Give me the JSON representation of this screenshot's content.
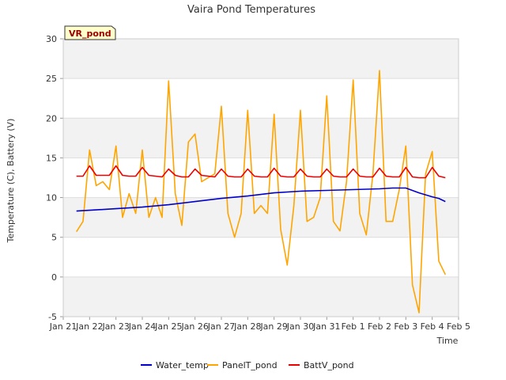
{
  "chart_data": {
    "type": "line",
    "title": "Vaira Pond Temperatures",
    "xlabel": "Time",
    "ylabel": "Temperature (C), Battery (V)",
    "badge": "VR_pond",
    "ylim": [
      -5,
      30
    ],
    "yticks": [
      -5,
      0,
      5,
      10,
      15,
      20,
      25,
      30
    ],
    "xticks": [
      "Jan 21",
      "Jan 22",
      "Jan 23",
      "Jan 24",
      "Jan 25",
      "Jan 26",
      "Jan 27",
      "Jan 28",
      "Jan 29",
      "Jan 30",
      "Jan 31",
      "Feb 1",
      "Feb 2",
      "Feb 3",
      "Feb 4",
      "Feb 5"
    ],
    "grid": "horizontal bands",
    "legend_position": "bottom",
    "colors": {
      "Water_temp": "#0000cc",
      "PanelT_pond": "#ffa500",
      "BattV_pond": "#ee0000"
    },
    "series": [
      {
        "name": "Water_temp",
        "x": [
          "Jan 21 12:00",
          "Jan 22 00:00",
          "Jan 23 00:00",
          "Jan 24 00:00",
          "Jan 25 00:00",
          "Jan 26 00:00",
          "Jan 27 00:00",
          "Jan 28 00:00",
          "Jan 29 00:00",
          "Jan 30 00:00",
          "Jan 31 00:00",
          "Feb 1 00:00",
          "Feb 2 00:00",
          "Feb 2 12:00",
          "Feb 3 00:00",
          "Feb 3 12:00",
          "Feb 4 00:00",
          "Feb 4 06:00",
          "Feb 4 12:00"
        ],
        "values": [
          8.3,
          8.4,
          8.6,
          8.8,
          9.1,
          9.5,
          9.9,
          10.2,
          10.6,
          10.8,
          10.9,
          11.0,
          11.1,
          11.2,
          11.2,
          10.6,
          10.1,
          9.9,
          9.5
        ]
      },
      {
        "name": "PanelT_pond",
        "x": [
          "Jan 21 12:00",
          "Jan 21 18:00",
          "Jan 22 00:00",
          "Jan 22 06:00",
          "Jan 22 12:00",
          "Jan 22 18:00",
          "Jan 23 00:00",
          "Jan 23 06:00",
          "Jan 23 12:00",
          "Jan 23 18:00",
          "Jan 24 00:00",
          "Jan 24 06:00",
          "Jan 24 12:00",
          "Jan 24 18:00",
          "Jan 25 00:00",
          "Jan 25 06:00",
          "Jan 25 12:00",
          "Jan 25 18:00",
          "Jan 26 00:00",
          "Jan 26 06:00",
          "Jan 26 12:00",
          "Jan 26 18:00",
          "Jan 27 00:00",
          "Jan 27 06:00",
          "Jan 27 12:00",
          "Jan 27 18:00",
          "Jan 28 00:00",
          "Jan 28 06:00",
          "Jan 28 12:00",
          "Jan 28 18:00",
          "Jan 29 00:00",
          "Jan 29 06:00",
          "Jan 29 12:00",
          "Jan 29 18:00",
          "Jan 30 00:00",
          "Jan 30 06:00",
          "Jan 30 12:00",
          "Jan 30 18:00",
          "Jan 31 00:00",
          "Jan 31 06:00",
          "Jan 31 12:00",
          "Jan 31 18:00",
          "Feb 1 00:00",
          "Feb 1 06:00",
          "Feb 1 12:00",
          "Feb 1 18:00",
          "Feb 2 00:00",
          "Feb 2 06:00",
          "Feb 2 12:00",
          "Feb 2 18:00",
          "Feb 3 00:00",
          "Feb 3 06:00",
          "Feb 3 12:00",
          "Feb 3 18:00",
          "Feb 4 00:00",
          "Feb 4 06:00",
          "Feb 4 12:00"
        ],
        "values": [
          5.7,
          7.0,
          16.0,
          11.5,
          12.0,
          11.0,
          16.5,
          7.5,
          10.5,
          8.0,
          16.0,
          7.5,
          10.0,
          7.5,
          24.7,
          10.5,
          6.5,
          17.0,
          18.0,
          12.0,
          12.5,
          13.0,
          21.5,
          8.0,
          5.0,
          8.0,
          21.0,
          8.0,
          9.0,
          8.0,
          20.5,
          6.0,
          1.5,
          9.0,
          21.0,
          7.0,
          7.5,
          10.0,
          22.8,
          7.0,
          5.8,
          12.0,
          24.8,
          8.0,
          5.3,
          13.0,
          26.0,
          7.0,
          7.0,
          11.0,
          16.5,
          -1.0,
          -4.5,
          13.0,
          15.8,
          2.0,
          0.3
        ]
      },
      {
        "name": "BattV_pond",
        "x": [
          "Jan 21 12:00",
          "Jan 21 18:00",
          "Jan 22 00:00",
          "Jan 22 06:00",
          "Jan 22 12:00",
          "Jan 22 18:00",
          "Jan 23 00:00",
          "Jan 23 06:00",
          "Jan 23 12:00",
          "Jan 23 18:00",
          "Jan 24 00:00",
          "Jan 24 06:00",
          "Jan 24 12:00",
          "Jan 24 18:00",
          "Jan 25 00:00",
          "Jan 25 06:00",
          "Jan 25 12:00",
          "Jan 25 18:00",
          "Jan 26 00:00",
          "Jan 26 06:00",
          "Jan 26 12:00",
          "Jan 26 18:00",
          "Jan 27 00:00",
          "Jan 27 06:00",
          "Jan 27 12:00",
          "Jan 27 18:00",
          "Jan 28 00:00",
          "Jan 28 06:00",
          "Jan 28 12:00",
          "Jan 28 18:00",
          "Jan 29 00:00",
          "Jan 29 06:00",
          "Jan 29 12:00",
          "Jan 29 18:00",
          "Jan 30 00:00",
          "Jan 30 06:00",
          "Jan 30 12:00",
          "Jan 30 18:00",
          "Jan 31 00:00",
          "Jan 31 06:00",
          "Jan 31 12:00",
          "Jan 31 18:00",
          "Feb 1 00:00",
          "Feb 1 06:00",
          "Feb 1 12:00",
          "Feb 1 18:00",
          "Feb 2 00:00",
          "Feb 2 06:00",
          "Feb 2 12:00",
          "Feb 2 18:00",
          "Feb 3 00:00",
          "Feb 3 06:00",
          "Feb 3 12:00",
          "Feb 3 18:00",
          "Feb 4 00:00",
          "Feb 4 06:00",
          "Feb 4 12:00"
        ],
        "values": [
          12.7,
          12.7,
          14.0,
          12.8,
          12.8,
          12.8,
          14.0,
          12.8,
          12.7,
          12.7,
          13.8,
          12.8,
          12.7,
          12.6,
          13.6,
          12.8,
          12.6,
          12.6,
          13.6,
          12.8,
          12.7,
          12.6,
          13.6,
          12.7,
          12.6,
          12.6,
          13.6,
          12.7,
          12.6,
          12.6,
          13.7,
          12.7,
          12.6,
          12.6,
          13.6,
          12.7,
          12.6,
          12.6,
          13.6,
          12.7,
          12.6,
          12.6,
          13.6,
          12.7,
          12.6,
          12.6,
          13.7,
          12.7,
          12.6,
          12.6,
          13.8,
          12.6,
          12.5,
          12.5,
          13.8,
          12.7,
          12.5
        ]
      }
    ]
  }
}
